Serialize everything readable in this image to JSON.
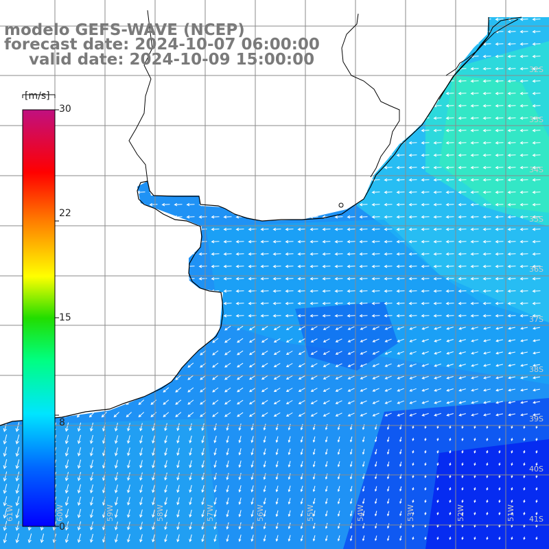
{
  "title": {
    "line1": "modelo GEFS-WAVE (NCEP)",
    "line2": "forecast date: 2024-10-07 06:00:00",
    "line3": "valid date: 2024-10-09 15:00:00"
  },
  "colorbar": {
    "unit": "[m/s]",
    "ticks": [
      "30",
      "22",
      "15",
      "8",
      "0"
    ],
    "tick_values": [
      30,
      22,
      15,
      8,
      0
    ],
    "range": [
      0,
      30
    ],
    "colors": [
      "#0000ff",
      "#00aaff",
      "#00ffff",
      "#00ff00",
      "#ffff00",
      "#ff8800",
      "#ff0000",
      "#aa0088"
    ]
  },
  "grid": {
    "lat_labels": [
      "32S",
      "33S",
      "34S",
      "35S",
      "36S",
      "37S",
      "38S",
      "39S",
      "40S",
      "41S"
    ],
    "lon_labels": [
      "61W",
      "60W",
      "59W",
      "58W",
      "57W",
      "56W",
      "55W",
      "54W",
      "53W",
      "52W",
      "51W"
    ]
  },
  "colors": {
    "land": "#ffffff",
    "coast": "#000000",
    "grid": "#888888",
    "title": "#7a7a7a"
  }
}
